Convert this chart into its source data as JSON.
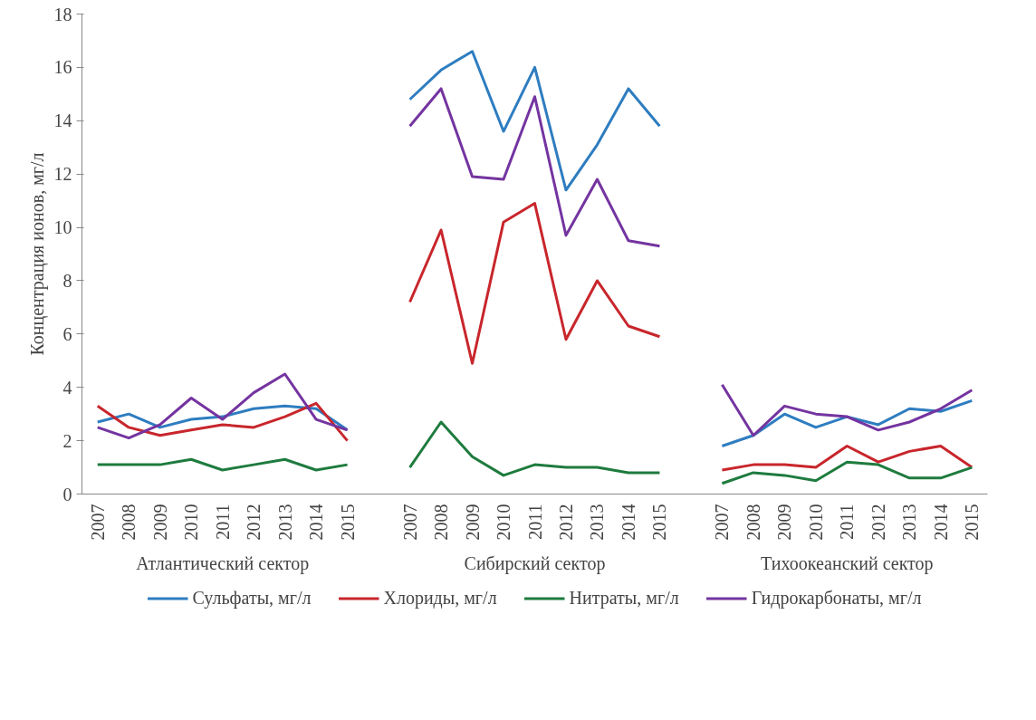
{
  "chart_data": {
    "type": "line",
    "ylabel": "Концентрация ионов, мг/л",
    "categories": [
      "2007",
      "2008",
      "2009",
      "2010",
      "2011",
      "2012",
      "2013",
      "2014",
      "2015",
      null,
      "2007",
      "2008",
      "2009",
      "2010",
      "2011",
      "2012",
      "2013",
      "2014",
      "2015",
      null,
      "2007",
      "2008",
      "2009",
      "2010",
      "2011",
      "2012",
      "2013",
      "2014",
      "2015"
    ],
    "series": [
      {
        "name": "Сульфаты, мг/л",
        "color": "#2e7dc0",
        "values": [
          2.7,
          3.0,
          2.5,
          2.8,
          2.9,
          3.2,
          3.3,
          3.2,
          2.4,
          null,
          14.8,
          15.9,
          16.6,
          13.6,
          16.0,
          11.4,
          13.1,
          15.2,
          13.8,
          null,
          1.8,
          2.2,
          3.0,
          2.5,
          2.9,
          2.6,
          3.2,
          3.1,
          3.5
        ]
      },
      {
        "name": "Хлориды, мг/л",
        "color": "#c8262c",
        "values": [
          3.3,
          2.5,
          2.2,
          2.4,
          2.6,
          2.5,
          2.9,
          3.4,
          2.0,
          null,
          7.2,
          9.9,
          4.9,
          10.2,
          10.9,
          5.8,
          8.0,
          6.3,
          5.9,
          null,
          0.9,
          1.1,
          1.1,
          1.0,
          1.8,
          1.2,
          1.6,
          1.8,
          1.0
        ]
      },
      {
        "name": "Нитраты, мг/л",
        "color": "#1e7b3e",
        "values": [
          1.1,
          1.1,
          1.1,
          1.3,
          0.9,
          1.1,
          1.3,
          0.9,
          1.1,
          null,
          1.0,
          2.7,
          1.4,
          0.7,
          1.1,
          1.0,
          1.0,
          0.8,
          0.8,
          null,
          0.4,
          0.8,
          0.7,
          0.5,
          1.2,
          1.1,
          0.6,
          0.6,
          1.0
        ]
      },
      {
        "name": "Гидрокарбонаты, мг/л",
        "color": "#7434a0",
        "values": [
          2.5,
          2.1,
          2.6,
          3.6,
          2.8,
          3.8,
          4.5,
          2.8,
          2.4,
          null,
          13.8,
          15.2,
          11.9,
          11.8,
          14.9,
          9.7,
          11.8,
          9.5,
          9.3,
          null,
          4.1,
          2.2,
          3.3,
          3.0,
          2.9,
          2.4,
          2.7,
          3.2,
          3.9
        ]
      }
    ],
    "annotations": [
      "Атлантический сектор",
      "Сибирский сектор",
      "Тихоокеанский сектор"
    ],
    "ylim": [
      0,
      18
    ],
    "yticks": [
      0,
      2,
      4,
      6,
      8,
      10,
      12,
      14,
      16,
      18
    ],
    "grid": false,
    "legend": "bottom",
    "marker": "none",
    "line_style": "solid"
  }
}
